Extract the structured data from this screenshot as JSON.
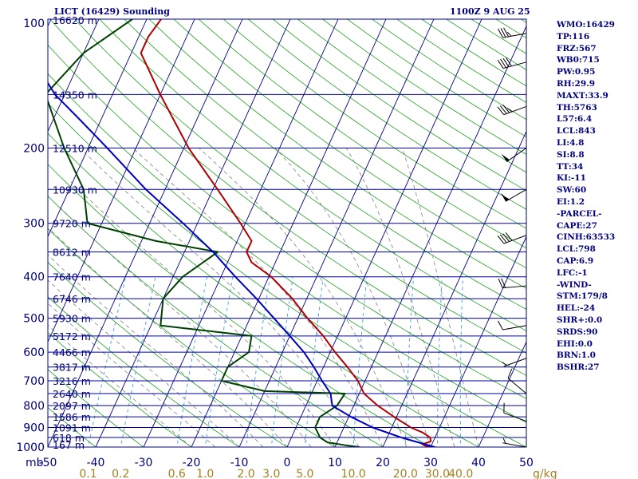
{
  "header": {
    "title": "LICT (16429) Sounding",
    "time": "1100Z  9 AUG 25"
  },
  "stats": [
    "WMO:16429",
    "TP:116",
    "FRZ:567",
    "WB0:715",
    "PW:0.95",
    "RH:29.9",
    "MAXT:33.9",
    "TH:5763",
    "L57:6.4",
    "LCL:843",
    "LI:4.8",
    "SI:8.8",
    "TT:34",
    "KI:-11",
    "SW:60",
    "EI:1.2",
    "-PARCEL-",
    "CAPE:27",
    "CINH:63533",
    "LCL:798",
    "CAP:6.9",
    "LFC:-1",
    "-WIND-",
    "STM:179/8",
    "HEL:-24",
    "SHR+:0.0",
    "SRDS:90",
    "EHI:0.0",
    "BRN:1.0",
    "BSHR:27"
  ],
  "colors": {
    "isobar": "#0000a0",
    "isotherm": "#000080",
    "dry_adiabat": "#20a020",
    "moist_adiabat": "#808080",
    "mixing_ratio": "#40a0e0",
    "temperature": "#b00000",
    "dewpoint": "#004000",
    "parcel": "#0000c0",
    "text": "#000080",
    "mixing_label": "#a08020"
  },
  "chart_data": {
    "type": "line",
    "title": "LICT (16429) Sounding",
    "subtitle": "1100Z  9 AUG 25",
    "y_scale": "log",
    "ylim": [
      1000,
      100
    ],
    "xlim": [
      -50,
      50
    ],
    "pressure_labels": [
      100,
      200,
      300,
      400,
      500,
      600,
      700,
      800,
      900,
      1000
    ],
    "pressure_unit": "mb",
    "temperature_ticks": [
      "-50",
      "-40",
      "-30",
      "-20",
      "-10",
      "0",
      "10",
      "20",
      "30",
      "40",
      "50"
    ],
    "mixing_ratio_ticks": [
      "0.1",
      "0.2",
      "0.6",
      "1.0",
      "2.0",
      "3.0",
      "5.0",
      "10.0",
      "20.0",
      "30.0",
      "40.0"
    ],
    "mixing_ratio_unit": "g/kg",
    "heights": [
      {
        "p": 100,
        "label": "16620 m"
      },
      {
        "p": 150,
        "label": "14350 m"
      },
      {
        "p": 200,
        "label": "12510 m"
      },
      {
        "p": 250,
        "label": "10930 m"
      },
      {
        "p": 300,
        "label": "9720 m"
      },
      {
        "p": 350,
        "label": "8612 m"
      },
      {
        "p": 400,
        "label": "7640 m"
      },
      {
        "p": 450,
        "label": "6746 m"
      },
      {
        "p": 500,
        "label": "5930 m"
      },
      {
        "p": 550,
        "label": "5172 m"
      },
      {
        "p": 600,
        "label": "4466 m"
      },
      {
        "p": 650,
        "label": "3817 m"
      },
      {
        "p": 700,
        "label": "3216 m"
      },
      {
        "p": 750,
        "label": "2640 m"
      },
      {
        "p": 800,
        "label": "2097 m"
      },
      {
        "p": 850,
        "label": "1586 m"
      },
      {
        "p": 900,
        "label": "1091 m"
      },
      {
        "p": 950,
        "label": "618 m"
      },
      {
        "p": 1000,
        "label": "167 m"
      }
    ],
    "series": [
      {
        "name": "temperature",
        "points": [
          [
            1008,
            32
          ],
          [
            1003,
            30
          ],
          [
            995,
            29
          ],
          [
            985,
            28
          ],
          [
            970,
            29.5
          ],
          [
            950,
            29
          ],
          [
            925,
            27
          ],
          [
            900,
            24
          ],
          [
            850,
            19.5
          ],
          [
            800,
            15
          ],
          [
            750,
            11
          ],
          [
            700,
            8.5
          ],
          [
            650,
            5
          ],
          [
            600,
            1
          ],
          [
            550,
            -3
          ],
          [
            500,
            -8
          ],
          [
            450,
            -13
          ],
          [
            400,
            -19.5
          ],
          [
            370,
            -25
          ],
          [
            350,
            -27
          ],
          [
            330,
            -27
          ],
          [
            300,
            -31
          ],
          [
            250,
            -39
          ],
          [
            200,
            -49
          ],
          [
            150,
            -60
          ],
          [
            120,
            -68
          ],
          [
            110,
            -68
          ],
          [
            100,
            -67
          ]
        ]
      },
      {
        "name": "dewpoint",
        "points": [
          [
            1008,
            16
          ],
          [
            1000,
            15
          ],
          [
            990,
            12
          ],
          [
            975,
            8
          ],
          [
            950,
            6
          ],
          [
            900,
            4
          ],
          [
            850,
            4
          ],
          [
            800,
            6.5
          ],
          [
            750,
            7
          ],
          [
            740,
            -10
          ],
          [
            700,
            -20
          ],
          [
            650,
            -20
          ],
          [
            600,
            -17
          ],
          [
            550,
            -18
          ],
          [
            520,
            -38
          ],
          [
            450,
            -40
          ],
          [
            400,
            -38
          ],
          [
            350,
            -33
          ],
          [
            330,
            -47
          ],
          [
            300,
            -63
          ],
          [
            250,
            -67
          ],
          [
            200,
            -75
          ],
          [
            150,
            -84
          ],
          [
            120,
            -80
          ],
          [
            100,
            -73
          ]
        ]
      },
      {
        "name": "parcel",
        "points": [
          [
            1008,
            32
          ],
          [
            998,
            30.5
          ],
          [
            950,
            23
          ],
          [
            900,
            16
          ],
          [
            850,
            10.5
          ],
          [
            800,
            5.5
          ],
          [
            750,
            4
          ],
          [
            700,
            1
          ],
          [
            650,
            -2
          ],
          [
            600,
            -5.5
          ],
          [
            550,
            -10
          ],
          [
            500,
            -15
          ],
          [
            450,
            -20.5
          ],
          [
            400,
            -27
          ],
          [
            350,
            -34
          ],
          [
            300,
            -43
          ],
          [
            250,
            -54
          ],
          [
            200,
            -66
          ],
          [
            170,
            -75
          ],
          [
            150,
            -82
          ],
          [
            130,
            -88
          ],
          [
            115,
            -92
          ]
        ]
      }
    ],
    "wind_barbs": [
      {
        "p": 108,
        "dir": 260,
        "kt": 35
      },
      {
        "p": 126,
        "dir": 255,
        "kt": 40
      },
      {
        "p": 160,
        "dir": 250,
        "kt": 35
      },
      {
        "p": 200,
        "dir": 235,
        "kt": 50
      },
      {
        "p": 250,
        "dir": 240,
        "kt": 55
      },
      {
        "p": 320,
        "dir": 250,
        "kt": 40
      },
      {
        "p": 420,
        "dir": 265,
        "kt": 20
      },
      {
        "p": 520,
        "dir": 260,
        "kt": 10
      },
      {
        "p": 620,
        "dir": 250,
        "kt": 5
      },
      {
        "p": 750,
        "dir": 310,
        "kt": 10
      },
      {
        "p": 870,
        "dir": 290,
        "kt": 10
      },
      {
        "p": 1000,
        "dir": 280,
        "kt": 5
      }
    ]
  }
}
